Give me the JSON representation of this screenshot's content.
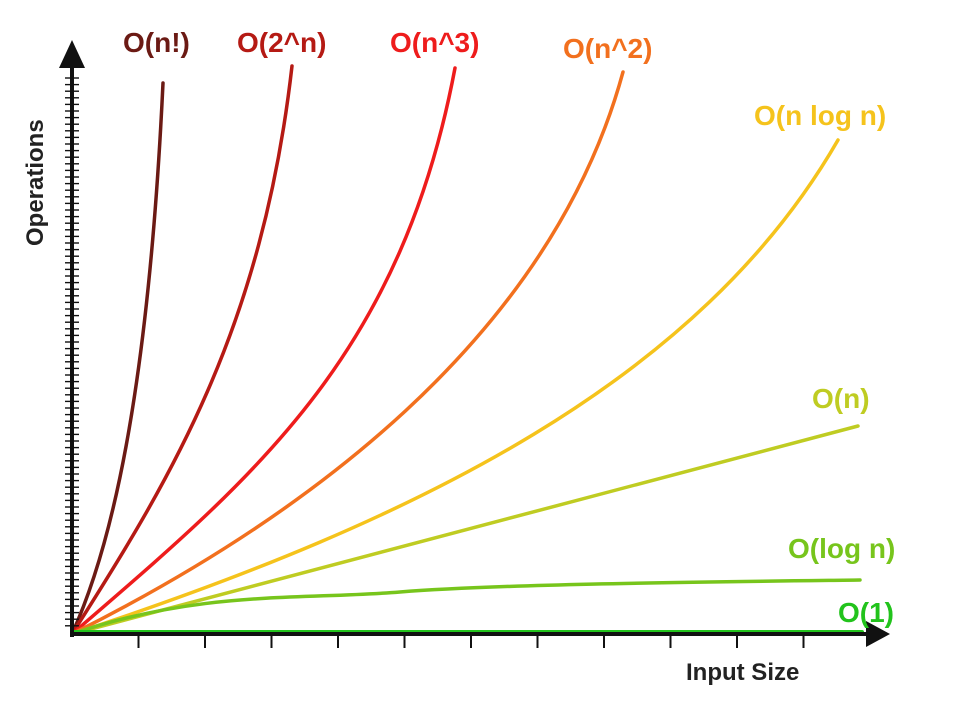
{
  "chart_data": {
    "type": "line",
    "title": "",
    "xlabel": "Input Size",
    "ylabel": "Operations",
    "grid": false,
    "legend": "none",
    "axis_color": "#111111",
    "series": [
      {
        "name": "O(n!)",
        "color": "#6b1a14",
        "curve": "factorial"
      },
      {
        "name": "O(2^n)",
        "color": "#b51a14",
        "curve": "exponential"
      },
      {
        "name": "O(n^3)",
        "color": "#ee1c1c",
        "curve": "cubic"
      },
      {
        "name": "O(n^2)",
        "color": "#f2701e",
        "curve": "quadratic"
      },
      {
        "name": "O(n log n)",
        "color": "#f5c31c",
        "curve": "linearithmic"
      },
      {
        "name": "O(n)",
        "color": "#bfcc22",
        "curve": "linear"
      },
      {
        "name": "O(log n)",
        "color": "#77c51c",
        "curve": "logarithmic"
      },
      {
        "name": "O(1)",
        "color": "#22c31c",
        "curve": "constant"
      }
    ]
  }
}
